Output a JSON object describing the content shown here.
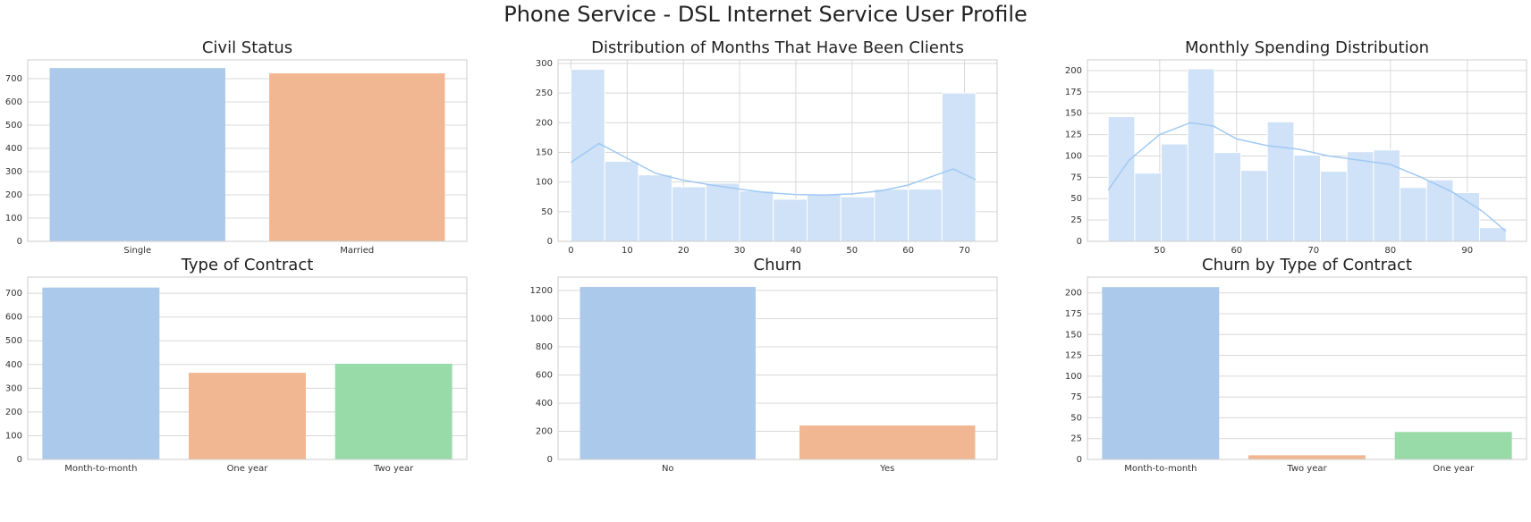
{
  "title": "Phone Service - DSL Internet Service User Profile",
  "chart_data": [
    {
      "type": "bar",
      "title": "Civil Status",
      "categories": [
        "Single",
        "Married"
      ],
      "values": [
        746,
        723
      ],
      "colors": [
        "#abc9eb",
        "#f1b792"
      ],
      "ylim": [
        0,
        781
      ],
      "yticks": [
        0,
        100,
        200,
        300,
        400,
        500,
        600,
        700
      ],
      "grid": true
    },
    {
      "type": "histogram",
      "title": "Distribution of Months That Have Been Clients",
      "bins": [
        0,
        6,
        12,
        18,
        24,
        30,
        36,
        42,
        48,
        54,
        60,
        66,
        72
      ],
      "values": [
        290,
        135,
        112,
        92,
        98,
        85,
        71,
        80,
        75,
        88,
        88,
        250
      ],
      "color": "#cfe2f7",
      "kde": {
        "x": [
          0,
          5,
          10,
          15,
          20,
          25,
          30,
          35,
          40,
          45,
          50,
          55,
          60,
          65,
          68,
          72
        ],
        "values": [
          133,
          165,
          140,
          115,
          103,
          95,
          88,
          82,
          79,
          78,
          80,
          85,
          95,
          112,
          122,
          104
        ],
        "color": "#a1c9f4"
      },
      "xlim": [
        -2.3,
        75.8
      ],
      "xticks": [
        0,
        10,
        20,
        30,
        40,
        50,
        60,
        70
      ],
      "ylim": [
        0,
        306
      ],
      "yticks": [
        0,
        50,
        100,
        150,
        200,
        250,
        300
      ],
      "grid": true
    },
    {
      "type": "histogram",
      "title": "Monthly Spending Distribution",
      "bins": [
        43.3,
        46.75,
        50.2,
        53.65,
        57.1,
        60.55,
        64,
        67.45,
        70.9,
        74.35,
        77.8,
        81.25,
        84.7,
        88.15,
        91.6,
        95.05
      ],
      "values": [
        146,
        80,
        114,
        202,
        104,
        83,
        140,
        101,
        82,
        105,
        107,
        63,
        72,
        57,
        16
      ],
      "color": "#cfe2f7",
      "kde": {
        "x": [
          43.3,
          46,
          50,
          54,
          57,
          60,
          64,
          68,
          72,
          76,
          80,
          84,
          88,
          92,
          95
        ],
        "values": [
          60,
          95,
          125,
          139,
          135,
          120,
          112,
          108,
          100,
          95,
          90,
          75,
          58,
          35,
          12
        ],
        "color": "#a1c9f4"
      },
      "xlim": [
        40.6,
        97.7
      ],
      "xticks": [
        50,
        60,
        70,
        80,
        90
      ],
      "ylim": [
        0,
        212.5
      ],
      "yticks": [
        0,
        25,
        50,
        75,
        100,
        125,
        150,
        175,
        200
      ],
      "grid": true
    },
    {
      "type": "bar",
      "title": "Type of Contract",
      "categories": [
        "Month-to-month",
        "One year",
        "Two year"
      ],
      "values": [
        724,
        365,
        403
      ],
      "colors": [
        "#abc9eb",
        "#f1b792",
        "#99dba8"
      ],
      "ylim": [
        0,
        768
      ],
      "yticks": [
        0,
        100,
        200,
        300,
        400,
        500,
        600,
        700
      ],
      "grid": true
    },
    {
      "type": "bar",
      "title": "Churn",
      "categories": [
        "No",
        "Yes"
      ],
      "values": [
        1225,
        241
      ],
      "colors": [
        "#abc9eb",
        "#f1b792"
      ],
      "ylim": [
        0,
        1295
      ],
      "yticks": [
        0,
        200,
        400,
        600,
        800,
        1000,
        1200
      ],
      "grid": true
    },
    {
      "type": "bar",
      "title": "Churn by Type of Contract",
      "categories": [
        "Month-to-month",
        "Two year",
        "One year"
      ],
      "values": [
        207,
        5,
        33
      ],
      "colors": [
        "#abc9eb",
        "#f1b792",
        "#99dba8"
      ],
      "ylim": [
        0,
        219
      ],
      "yticks": [
        0,
        25,
        50,
        75,
        100,
        125,
        150,
        175,
        200
      ],
      "grid": true
    }
  ]
}
